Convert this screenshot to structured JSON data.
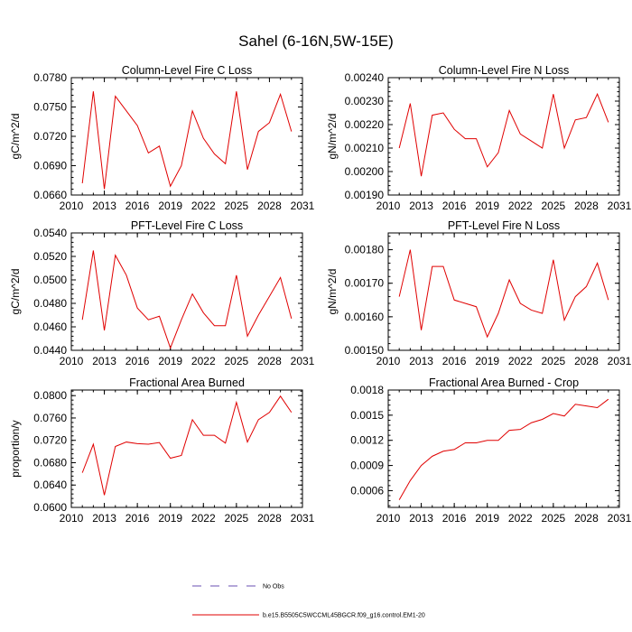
{
  "page_title": "Sahel (6-16N,5W-15E)",
  "legend": {
    "items": [
      {
        "label": "No Obs",
        "style": "dashed",
        "color": "#6a4fb3"
      },
      {
        "label": "b.e15.B5505C5WCCML45BGCR.f09_g16.control.EM1-20",
        "style": "solid",
        "color": "#e00000"
      }
    ]
  },
  "chart_data": [
    {
      "type": "line",
      "title": "Column-Level Fire C Loss",
      "ylabel": "gC/m^2/d",
      "xlim": [
        2010,
        2031
      ],
      "xticks": [
        "2010",
        "2013",
        "2016",
        "2019",
        "2022",
        "2025",
        "2028",
        "2031"
      ],
      "ylim": [
        0.066,
        0.078
      ],
      "yticks": [
        "0.0660",
        "0.0690",
        "0.0720",
        "0.0750",
        "0.0780"
      ],
      "x": [
        2011,
        2012,
        2013,
        2014,
        2015,
        2016,
        2017,
        2018,
        2019,
        2020,
        2021,
        2022,
        2023,
        2024,
        2025,
        2026,
        2027,
        2028,
        2029,
        2030
      ],
      "series": [
        {
          "name": "b.e15.B5505C5WCCML45BGCR.f09_g16.control.EM1-20",
          "color": "#e00000",
          "values": [
            0.0672,
            0.0766,
            0.0666,
            0.0761,
            0.0746,
            0.0731,
            0.0703,
            0.071,
            0.0669,
            0.069,
            0.0746,
            0.0718,
            0.0702,
            0.0692,
            0.0766,
            0.0686,
            0.0725,
            0.0734,
            0.0763,
            0.0725
          ]
        }
      ]
    },
    {
      "type": "line",
      "title": "Column-Level Fire N Loss",
      "ylabel": "gN/m^2/d",
      "xlim": [
        2010,
        2031
      ],
      "xticks": [
        "2010",
        "2013",
        "2016",
        "2019",
        "2022",
        "2025",
        "2028",
        "2031"
      ],
      "ylim": [
        0.0019,
        0.0024
      ],
      "yticks": [
        "0.00190",
        "0.00200",
        "0.00210",
        "0.00220",
        "0.00230",
        "0.00240"
      ],
      "x": [
        2011,
        2012,
        2013,
        2014,
        2015,
        2016,
        2017,
        2018,
        2019,
        2020,
        2021,
        2022,
        2023,
        2024,
        2025,
        2026,
        2027,
        2028,
        2029,
        2030
      ],
      "series": [
        {
          "name": "b.e15.B5505C5WCCML45BGCR.f09_g16.control.EM1-20",
          "color": "#e00000",
          "values": [
            0.0021,
            0.00229,
            0.00198,
            0.00224,
            0.00225,
            0.00218,
            0.00214,
            0.00214,
            0.00202,
            0.00208,
            0.00226,
            0.00216,
            0.00213,
            0.0021,
            0.00233,
            0.0021,
            0.00222,
            0.00223,
            0.00233,
            0.00221
          ]
        }
      ]
    },
    {
      "type": "line",
      "title": "PFT-Level Fire C Loss",
      "ylabel": "gC/m^2/d",
      "xlim": [
        2010,
        2031
      ],
      "xticks": [
        "2010",
        "2013",
        "2016",
        "2019",
        "2022",
        "2025",
        "2028",
        "2031"
      ],
      "ylim": [
        0.044,
        0.054
      ],
      "yticks": [
        "0.0440",
        "0.0460",
        "0.0480",
        "0.0500",
        "0.0520",
        "0.0540"
      ],
      "x": [
        2011,
        2012,
        2013,
        2014,
        2015,
        2016,
        2017,
        2018,
        2019,
        2020,
        2021,
        2022,
        2023,
        2024,
        2025,
        2026,
        2027,
        2028,
        2029,
        2030
      ],
      "series": [
        {
          "name": "b.e15.B5505C5WCCML45BGCR.f09_g16.control.EM1-20",
          "color": "#e00000",
          "values": [
            0.0466,
            0.0525,
            0.0457,
            0.0521,
            0.0504,
            0.0476,
            0.0466,
            0.0469,
            0.0442,
            0.0466,
            0.0488,
            0.0472,
            0.0461,
            0.0461,
            0.0504,
            0.0452,
            0.047,
            0.0486,
            0.0502,
            0.0467
          ]
        }
      ]
    },
    {
      "type": "line",
      "title": "PFT-Level Fire N Loss",
      "ylabel": "gN/m^2/d",
      "xlim": [
        2010,
        2031
      ],
      "xticks": [
        "2010",
        "2013",
        "2016",
        "2019",
        "2022",
        "2025",
        "2028",
        "2031"
      ],
      "ylim": [
        0.0015,
        0.00185
      ],
      "yticks": [
        "0.00150",
        "0.00160",
        "0.00170",
        "0.00180"
      ],
      "x": [
        2011,
        2012,
        2013,
        2014,
        2015,
        2016,
        2017,
        2018,
        2019,
        2020,
        2021,
        2022,
        2023,
        2024,
        2025,
        2026,
        2027,
        2028,
        2029,
        2030
      ],
      "series": [
        {
          "name": "b.e15.B5505C5WCCML45BGCR.f09_g16.control.EM1-20",
          "color": "#e00000",
          "values": [
            0.00166,
            0.0018,
            0.00156,
            0.00175,
            0.00175,
            0.00165,
            0.00164,
            0.00163,
            0.00154,
            0.00161,
            0.00171,
            0.00164,
            0.00162,
            0.00161,
            0.00177,
            0.00159,
            0.00166,
            0.00169,
            0.00176,
            0.00165
          ]
        }
      ]
    },
    {
      "type": "line",
      "title": "Fractional Area Burned",
      "ylabel": "proportion/y",
      "xlim": [
        2010,
        2031
      ],
      "xticks": [
        "2010",
        "2013",
        "2016",
        "2019",
        "2022",
        "2025",
        "2028",
        "2031"
      ],
      "ylim": [
        0.06,
        0.081
      ],
      "yticks": [
        "0.0600",
        "0.0640",
        "0.0680",
        "0.0720",
        "0.0760",
        "0.0800"
      ],
      "x": [
        2011,
        2012,
        2013,
        2014,
        2015,
        2016,
        2017,
        2018,
        2019,
        2020,
        2021,
        2022,
        2023,
        2024,
        2025,
        2026,
        2027,
        2028,
        2029,
        2030
      ],
      "series": [
        {
          "name": "b.e15.B5505C5WCCML45BGCR.f09_g16.control.EM1-20",
          "color": "#e00000",
          "values": [
            0.0662,
            0.0713,
            0.0622,
            0.0709,
            0.0717,
            0.0714,
            0.0713,
            0.0716,
            0.0688,
            0.0693,
            0.0757,
            0.0729,
            0.0729,
            0.0715,
            0.0788,
            0.0717,
            0.0757,
            0.077,
            0.0799,
            0.077
          ]
        }
      ]
    },
    {
      "type": "line",
      "title": "Fractional Area Burned - Crop",
      "ylabel": "",
      "xlim": [
        2010,
        2031
      ],
      "xticks": [
        "2010",
        "2013",
        "2016",
        "2019",
        "2022",
        "2025",
        "2028",
        "2031"
      ],
      "ylim": [
        0.0004,
        0.0018
      ],
      "yticks": [
        "0.0006",
        "0.0009",
        "0.0012",
        "0.0015",
        "0.0018"
      ],
      "x": [
        2011,
        2012,
        2013,
        2014,
        2015,
        2016,
        2017,
        2018,
        2019,
        2020,
        2021,
        2022,
        2023,
        2024,
        2025,
        2026,
        2027,
        2028,
        2029,
        2030
      ],
      "series": [
        {
          "name": "b.e15.B5505C5WCCML45BGCR.f09_g16.control.EM1-20",
          "color": "#e00000",
          "values": [
            0.00049,
            0.00072,
            0.0009,
            0.00101,
            0.00107,
            0.00109,
            0.00117,
            0.00117,
            0.0012,
            0.0012,
            0.00132,
            0.00133,
            0.00141,
            0.00145,
            0.00152,
            0.00149,
            0.00163,
            0.00161,
            0.00159,
            0.00169
          ]
        }
      ]
    }
  ]
}
